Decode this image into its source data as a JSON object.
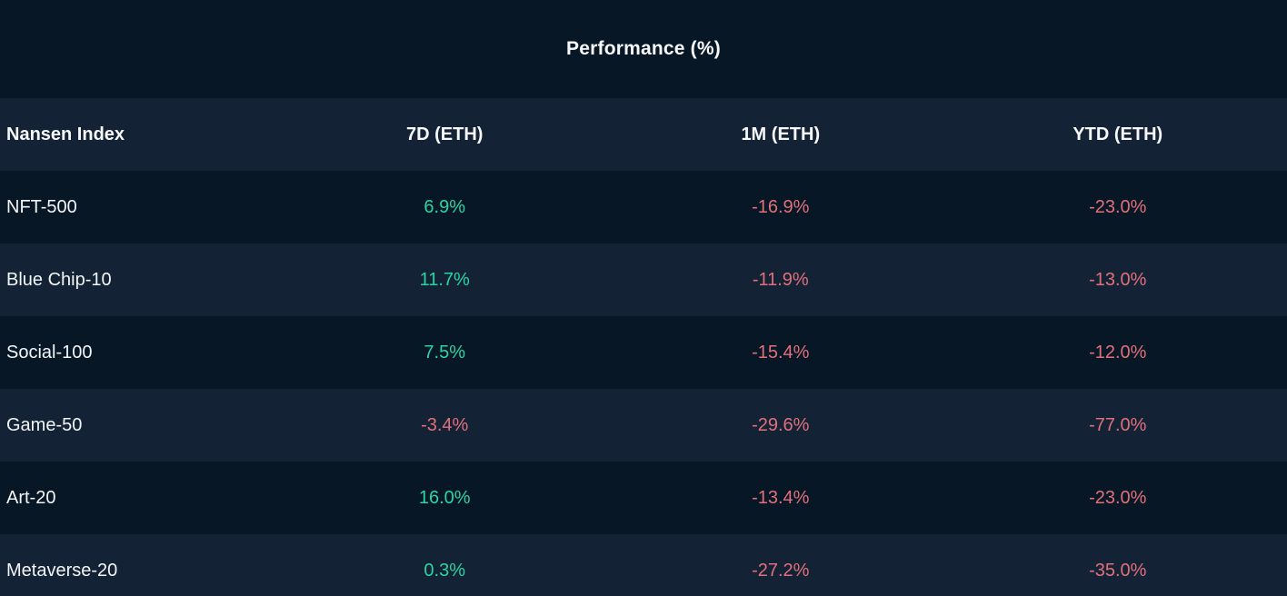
{
  "title": "Performance (%)",
  "table": {
    "header": {
      "index_label": "Nansen Index",
      "col_7d": "7D (ETH)",
      "col_1m": "1M (ETH)",
      "col_ytd": "YTD (ETH)"
    },
    "rows": [
      {
        "name": "NFT-500",
        "d7": "6.9%",
        "m1": "-16.9%",
        "ytd": "-23.0%"
      },
      {
        "name": "Blue Chip-10",
        "d7": "11.7%",
        "m1": "-11.9%",
        "ytd": "-13.0%"
      },
      {
        "name": "Social-100",
        "d7": "7.5%",
        "m1": "-15.4%",
        "ytd": "-12.0%"
      },
      {
        "name": "Game-50",
        "d7": "-3.4%",
        "m1": "-29.6%",
        "ytd": "-77.0%"
      },
      {
        "name": "Art-20",
        "d7": "16.0%",
        "m1": "-13.4%",
        "ytd": "-23.0%"
      },
      {
        "name": "Metaverse-20",
        "d7": "0.3%",
        "m1": "-27.2%",
        "ytd": "-35.0%"
      }
    ]
  },
  "colors": {
    "positive": "#2bd4a2",
    "negative": "#e0707a",
    "background_dark": "#081726",
    "background_light": "#142236",
    "text": "#f2f5f7"
  },
  "chart_data": {
    "type": "table",
    "title": "Performance (%)",
    "columns": [
      "Nansen Index",
      "7D (ETH)",
      "1M (ETH)",
      "YTD (ETH)"
    ],
    "rows": [
      [
        "NFT-500",
        6.9,
        -16.9,
        -23.0
      ],
      [
        "Blue Chip-10",
        11.7,
        -11.9,
        -13.0
      ],
      [
        "Social-100",
        7.5,
        -15.4,
        -12.0
      ],
      [
        "Game-50",
        -3.4,
        -29.6,
        -77.0
      ],
      [
        "Art-20",
        16.0,
        -13.4,
        -23.0
      ],
      [
        "Metaverse-20",
        0.3,
        -27.2,
        -35.0
      ]
    ],
    "units": "%"
  }
}
